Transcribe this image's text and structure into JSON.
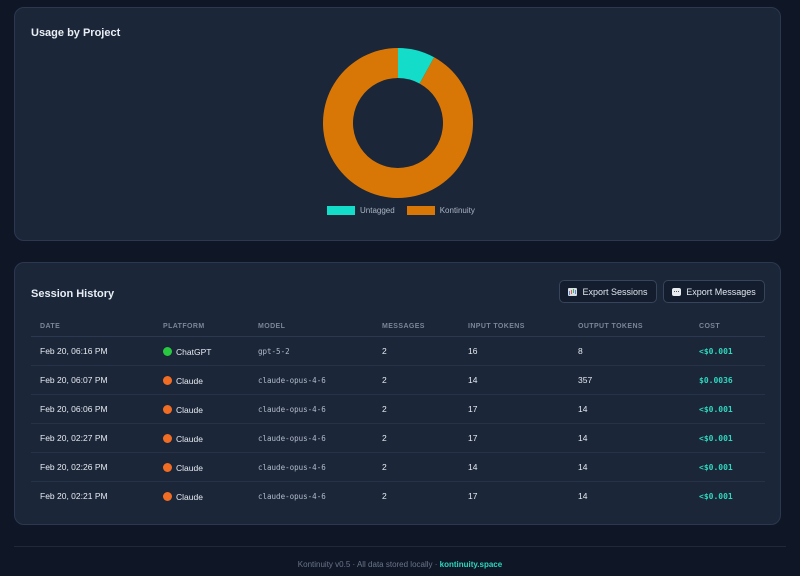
{
  "usage_card": {
    "title": "Usage by Project",
    "legend": [
      {
        "label": "Untagged",
        "color": "#13dcc9"
      },
      {
        "label": "Kontinuity",
        "color": "#d97706"
      }
    ]
  },
  "chart_data": {
    "type": "pie",
    "variant": "donut",
    "labels": [
      "Untagged",
      "Kontinuity"
    ],
    "values": [
      8,
      92
    ],
    "colors": [
      "#13dcc9",
      "#d97706"
    ],
    "legend_position": "bottom"
  },
  "history": {
    "title": "Session History",
    "export_sessions": "Export Sessions",
    "export_messages": "Export Messages",
    "columns": [
      "DATE",
      "PLATFORM",
      "MODEL",
      "MESSAGES",
      "INPUT TOKENS",
      "OUTPUT TOKENS",
      "COST"
    ],
    "rows": [
      {
        "date": "Feb 20, 06:16 PM",
        "platform": "ChatGPT",
        "platform_key": "chatgpt",
        "model": "gpt-5-2",
        "messages": "2",
        "input": "16",
        "output": "8",
        "cost": "<$0.001"
      },
      {
        "date": "Feb 20, 06:07 PM",
        "platform": "Claude",
        "platform_key": "claude",
        "model": "claude-opus-4-6",
        "messages": "2",
        "input": "14",
        "output": "357",
        "cost": "$0.0036"
      },
      {
        "date": "Feb 20, 06:06 PM",
        "platform": "Claude",
        "platform_key": "claude",
        "model": "claude-opus-4-6",
        "messages": "2",
        "input": "17",
        "output": "14",
        "cost": "<$0.001"
      },
      {
        "date": "Feb 20, 02:27 PM",
        "platform": "Claude",
        "platform_key": "claude",
        "model": "claude-opus-4-6",
        "messages": "2",
        "input": "17",
        "output": "14",
        "cost": "<$0.001"
      },
      {
        "date": "Feb 20, 02:26 PM",
        "platform": "Claude",
        "platform_key": "claude",
        "model": "claude-opus-4-6",
        "messages": "2",
        "input": "14",
        "output": "14",
        "cost": "<$0.001"
      },
      {
        "date": "Feb 20, 02:21 PM",
        "platform": "Claude",
        "platform_key": "claude",
        "model": "claude-opus-4-6",
        "messages": "2",
        "input": "17",
        "output": "14",
        "cost": "<$0.001"
      }
    ]
  },
  "footer": {
    "text": "Kontinuity v0.5 · All data stored locally · ",
    "link": "kontinuity.space"
  }
}
